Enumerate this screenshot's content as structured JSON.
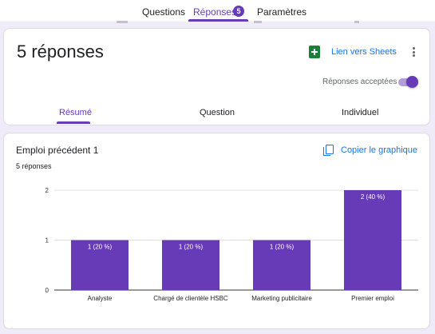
{
  "tabs": {
    "questions": "Questions",
    "responses": "Réponses",
    "responses_count": "5",
    "settings": "Paramètres"
  },
  "summary": {
    "title": "5 réponses",
    "sheets_link": "Lien vers Sheets",
    "accepting_label": "Réponses acceptées",
    "accepting": true,
    "subtabs": [
      "Résumé",
      "Question",
      "Individuel"
    ],
    "active_subtab": "Résumé"
  },
  "question_card": {
    "title": "Emploi précédent 1",
    "response_count": "5 réponses",
    "copy_chart": "Copier le graphique"
  },
  "colors": {
    "accent": "#673ab7",
    "bar": "#673ab7",
    "link": "#1a73e8",
    "sheets": "#188038",
    "background": "#f0ebf8"
  },
  "icons": {
    "sheets": "sheets-icon",
    "more": "more-vert-icon",
    "copy": "copy-icon"
  },
  "chart_data": {
    "type": "bar",
    "categories": [
      "Analyste",
      "Chargé de clientèle HSBC",
      "Marketing publicitaire",
      "Premier emploi"
    ],
    "values": [
      1,
      1,
      1,
      2
    ],
    "data_labels": [
      "1 (20 %)",
      "1 (20 %)",
      "1 (20 %)",
      "2 (40 %)"
    ],
    "y_ticks": [
      "0",
      "1",
      "2"
    ],
    "ylim": [
      0,
      2
    ],
    "title": "",
    "xlabel": "",
    "ylabel": "",
    "grid": true
  }
}
